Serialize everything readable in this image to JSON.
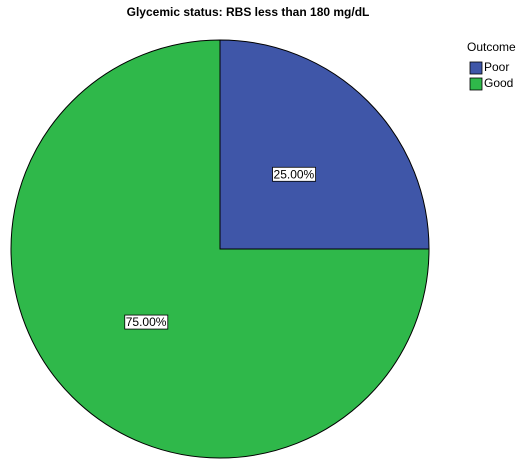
{
  "chart_data": {
    "type": "pie",
    "title": "Glycemic status: RBS less than 180 mg/dL",
    "legend_title": "Outcome",
    "categories": [
      "Poor",
      "Good"
    ],
    "values": [
      25,
      75
    ],
    "value_labels": [
      "25.00%",
      "75.00%"
    ],
    "colors": [
      "#3f56a8",
      "#2fb84a"
    ],
    "legend": "top-right"
  }
}
